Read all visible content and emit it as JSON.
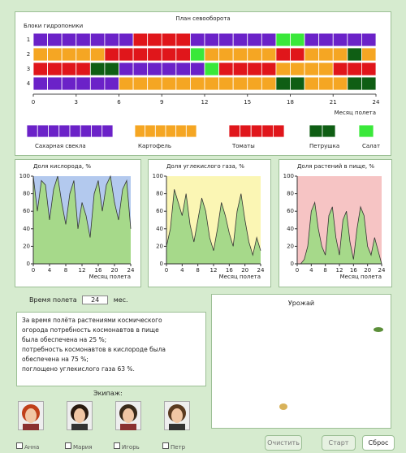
{
  "plan": {
    "title": "План севооборота",
    "row_title": "Блоки гидропоники",
    "row_labels": [
      "1",
      "2",
      "3",
      "4"
    ],
    "xlim": [
      0,
      24
    ],
    "xticks": [
      0,
      3,
      6,
      9,
      12,
      15,
      18,
      21,
      24
    ],
    "x_label": "Месяц полета",
    "rows": [
      [
        {
          "crop": 0,
          "start": 0,
          "end": 7
        },
        {
          "crop": 2,
          "start": 7,
          "end": 11
        },
        {
          "crop": 0,
          "start": 11,
          "end": 17
        },
        {
          "crop": 4,
          "start": 17,
          "end": 19
        },
        {
          "crop": 0,
          "start": 19,
          "end": 24
        }
      ],
      [
        {
          "crop": 1,
          "start": 0,
          "end": 5
        },
        {
          "crop": 2,
          "start": 5,
          "end": 11
        },
        {
          "crop": 4,
          "start": 11,
          "end": 12
        },
        {
          "crop": 1,
          "start": 12,
          "end": 17
        },
        {
          "crop": 2,
          "start": 17,
          "end": 19
        },
        {
          "crop": 1,
          "start": 19,
          "end": 22
        },
        {
          "crop": 3,
          "start": 22,
          "end": 23
        },
        {
          "crop": 1,
          "start": 23,
          "end": 24
        }
      ],
      [
        {
          "crop": 2,
          "start": 0,
          "end": 4
        },
        {
          "crop": 3,
          "start": 4,
          "end": 6
        },
        {
          "crop": 0,
          "start": 6,
          "end": 12
        },
        {
          "crop": 4,
          "start": 12,
          "end": 13
        },
        {
          "crop": 2,
          "start": 13,
          "end": 17
        },
        {
          "crop": 1,
          "start": 17,
          "end": 21
        },
        {
          "crop": 2,
          "start": 21,
          "end": 24
        }
      ],
      [
        {
          "crop": 0,
          "start": 0,
          "end": 6
        },
        {
          "crop": 1,
          "start": 6,
          "end": 17
        },
        {
          "crop": 3,
          "start": 17,
          "end": 19
        },
        {
          "crop": 1,
          "start": 19,
          "end": 22
        },
        {
          "crop": 3,
          "start": 22,
          "end": 24
        }
      ]
    ],
    "legend": [
      {
        "name": "Сахарная свекла",
        "color": "#6b22c8"
      },
      {
        "name": "Картофель",
        "color": "#f5a623"
      },
      {
        "name": "Томаты",
        "color": "#e0161b"
      },
      {
        "name": "Петрушка",
        "color": "#0f5e14"
      },
      {
        "name": "Салат",
        "color": "#3ae83a"
      }
    ]
  },
  "charts": [
    {
      "title": "Доля кислорода, %",
      "background": "#b3c9ee",
      "color": "#a6d98a",
      "ylim": [
        0,
        100
      ],
      "yticks": [
        0,
        20,
        40,
        60,
        80,
        100
      ],
      "xlim": [
        0,
        24
      ],
      "xticks": [
        0,
        4,
        8,
        12,
        16,
        20,
        24
      ],
      "x_label": "Месяц полета",
      "x": [
        0,
        1,
        2,
        3,
        4,
        5,
        6,
        7,
        8,
        9,
        10,
        11,
        12,
        13,
        14,
        15,
        16,
        17,
        18,
        19,
        20,
        21,
        22,
        23,
        24
      ],
      "values": [
        100,
        60,
        95,
        90,
        50,
        85,
        100,
        70,
        45,
        80,
        95,
        40,
        70,
        55,
        30,
        80,
        95,
        60,
        90,
        100,
        70,
        50,
        85,
        95,
        40
      ]
    },
    {
      "title": "Доля углекислого газа, %",
      "background": "#fbf6b4",
      "color": "#a6d98a",
      "ylim": [
        0,
        100
      ],
      "yticks": [
        0,
        20,
        40,
        60,
        80,
        100
      ],
      "xlim": [
        0,
        24
      ],
      "xticks": [
        0,
        4,
        8,
        12,
        16,
        20,
        24
      ],
      "x_label": "Месяц полета",
      "x": [
        0,
        1,
        2,
        3,
        4,
        5,
        6,
        7,
        8,
        9,
        10,
        11,
        12,
        13,
        14,
        15,
        16,
        17,
        18,
        19,
        20,
        21,
        22,
        23,
        24
      ],
      "values": [
        20,
        40,
        85,
        70,
        55,
        80,
        45,
        25,
        50,
        75,
        60,
        30,
        15,
        40,
        70,
        55,
        35,
        20,
        60,
        80,
        50,
        25,
        10,
        30,
        15
      ]
    },
    {
      "title": "Доля растений в пище, %",
      "background": "#f6c4c4",
      "color": "#a6d98a",
      "ylim": [
        0,
        100
      ],
      "yticks": [
        0,
        20,
        40,
        60,
        80,
        100
      ],
      "xlim": [
        0,
        24
      ],
      "xticks": [
        0,
        4,
        8,
        12,
        16,
        20,
        24
      ],
      "x_label": "Месяц полета",
      "x": [
        0,
        1,
        2,
        3,
        4,
        5,
        6,
        7,
        8,
        9,
        10,
        11,
        12,
        13,
        14,
        15,
        16,
        17,
        18,
        19,
        20,
        21,
        22,
        23,
        24
      ],
      "values": [
        0,
        0,
        5,
        20,
        60,
        70,
        40,
        20,
        10,
        55,
        65,
        30,
        10,
        50,
        60,
        25,
        5,
        40,
        65,
        55,
        20,
        10,
        30,
        15,
        0
      ]
    }
  ],
  "flight_time": {
    "label": "Время полета",
    "value": "24",
    "unit": "мес."
  },
  "summary": [
    "За время полёта растениями космического",
    "огорода потребность космонавтов в пище",
    "была обеспечена на    25 %;",
    "потребность космонавтов в кислороде была",
    "обеспечена на    75 %;",
    "поглощено углекислого газа    63 %."
  ],
  "crew": {
    "title": "Экипаж:",
    "members": [
      "Анна",
      "Мария",
      "Игорь",
      "Петр"
    ]
  },
  "harvest": {
    "title": "Урожай"
  },
  "buttons": [
    "Очистить",
    "Старт",
    "Сброс"
  ]
}
